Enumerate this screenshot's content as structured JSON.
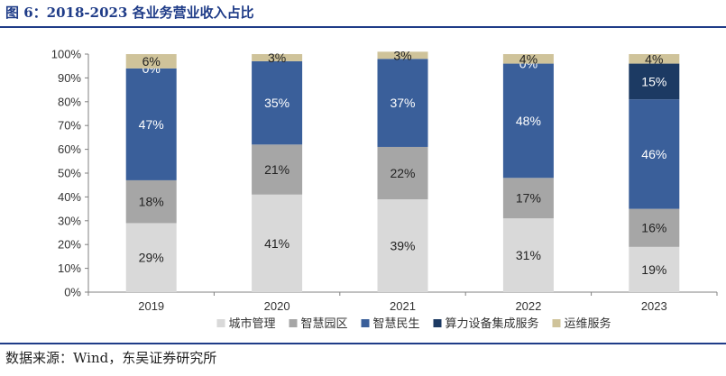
{
  "figure": {
    "title": "图 6：2018-2023 各业务营业收入占比",
    "source": "数据来源：Wind，东吴证券研究所"
  },
  "chart_data": {
    "type": "bar",
    "stacked": true,
    "categories": [
      "2019",
      "2020",
      "2021",
      "2022",
      "2023"
    ],
    "yticks": [
      "0%",
      "10%",
      "20%",
      "30%",
      "40%",
      "50%",
      "60%",
      "70%",
      "80%",
      "90%",
      "100%"
    ],
    "ylim": [
      0,
      100
    ],
    "grid": false,
    "legend_position": "bottom",
    "series": [
      {
        "name": "城市管理",
        "color": "#d9d9d9",
        "label_color": "#222222",
        "values": [
          29,
          41,
          39,
          31,
          19
        ],
        "labels": [
          "29%",
          "41%",
          "39%",
          "31%",
          "19%"
        ]
      },
      {
        "name": "智慧园区",
        "color": "#a6a6a6",
        "label_color": "#222222",
        "values": [
          18,
          21,
          22,
          17,
          16
        ],
        "labels": [
          "18%",
          "21%",
          "22%",
          "17%",
          "16%"
        ]
      },
      {
        "name": "智慧民生",
        "color": "#3a5f9a",
        "label_color": "#ffffff",
        "values": [
          47,
          35,
          37,
          48,
          46
        ],
        "labels": [
          "47%",
          "35%",
          "37%",
          "48%",
          "46%"
        ]
      },
      {
        "name": "算力设备集成服务",
        "color": "#1c3a63",
        "label_color": "#ffffff",
        "values": [
          0,
          0,
          0,
          0,
          15
        ],
        "labels": [
          "0%",
          "",
          "",
          "0%",
          "15%"
        ]
      },
      {
        "name": "运维服务",
        "color": "#cfc39a",
        "label_color": "#222222",
        "values": [
          6,
          3,
          3,
          4,
          4
        ],
        "labels": [
          "6%",
          "3%",
          "3%",
          "4%",
          "4%"
        ]
      }
    ]
  }
}
